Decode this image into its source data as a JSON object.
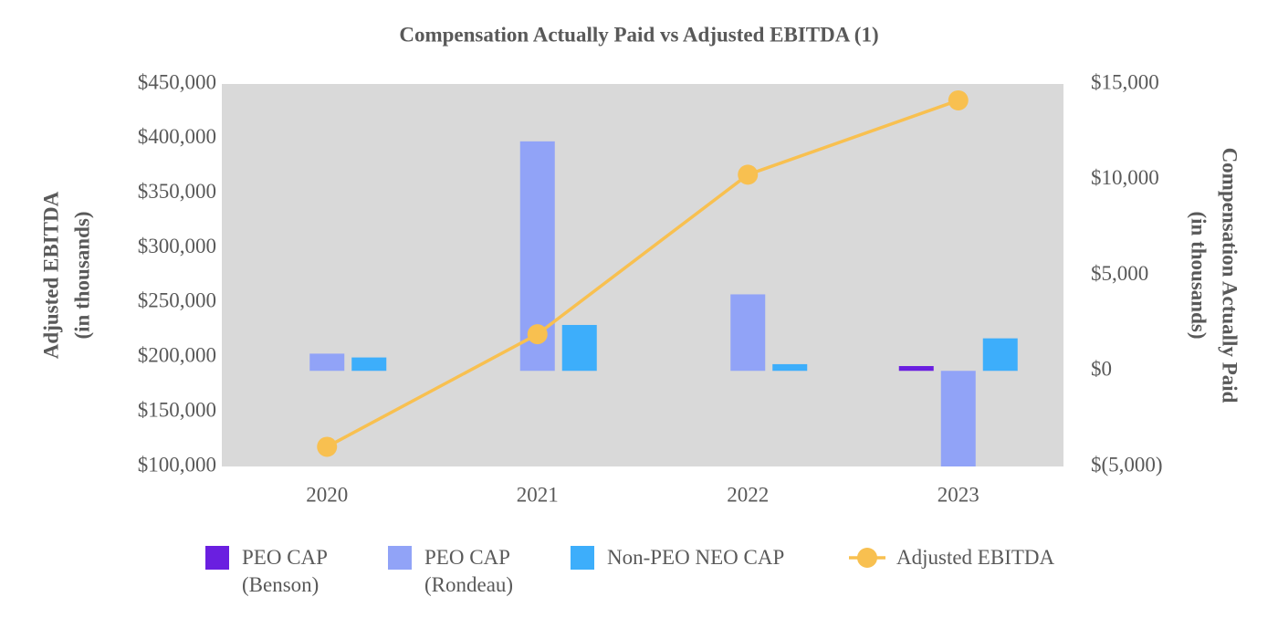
{
  "chart_data": {
    "type": "bar",
    "title": "Compensation Actually Paid vs Adjusted EBITDA (1)",
    "ylabel": [
      "Adjusted EBITDA",
      "(in thousands)"
    ],
    "y2label": [
      "Compensation Actually Paid",
      "(in thousands)"
    ],
    "categories": [
      "2020",
      "2021",
      "2022",
      "2023"
    ],
    "series": [
      {
        "name": "PEO CAP (Benson)",
        "color": "#6a1fe0",
        "type": "bar",
        "axis": "y2",
        "values": [
          null,
          null,
          null,
          250
        ]
      },
      {
        "name": "PEO CAP (Rondeau)",
        "color": "#91a3f7",
        "type": "bar",
        "axis": "y2",
        "values": [
          900,
          12000,
          4000,
          -5000
        ]
      },
      {
        "name": "Non-PEO NEO CAP",
        "color": "#3daefb",
        "type": "bar",
        "axis": "y2",
        "values": [
          700,
          2400,
          350,
          1700
        ]
      },
      {
        "name": "Adjusted EBITDA",
        "color": "#f8c050",
        "type": "line",
        "axis": "y",
        "values": [
          118000,
          221000,
          367000,
          435000
        ]
      }
    ],
    "ylim": [
      100000,
      450000
    ],
    "yticks": [
      {
        "value": 100000,
        "label": "$100,000"
      },
      {
        "value": 150000,
        "label": "$150,000"
      },
      {
        "value": 200000,
        "label": "$200,000"
      },
      {
        "value": 250000,
        "label": "$250,000"
      },
      {
        "value": 300000,
        "label": "$300,000"
      },
      {
        "value": 350000,
        "label": "$350,000"
      },
      {
        "value": 400000,
        "label": "$400,000"
      },
      {
        "value": 450000,
        "label": "$450,000"
      }
    ],
    "y2lim": [
      -5000,
      15000
    ],
    "y2ticks": [
      {
        "value": -5000,
        "label": "$(5,000)"
      },
      {
        "value": 0,
        "label": "$0"
      },
      {
        "value": 5000,
        "label": "$5,000"
      },
      {
        "value": 10000,
        "label": "$10,000"
      },
      {
        "value": 15000,
        "label": "$15,000"
      }
    ],
    "plot_background": "#d9d9d9",
    "legend": "bottom"
  }
}
